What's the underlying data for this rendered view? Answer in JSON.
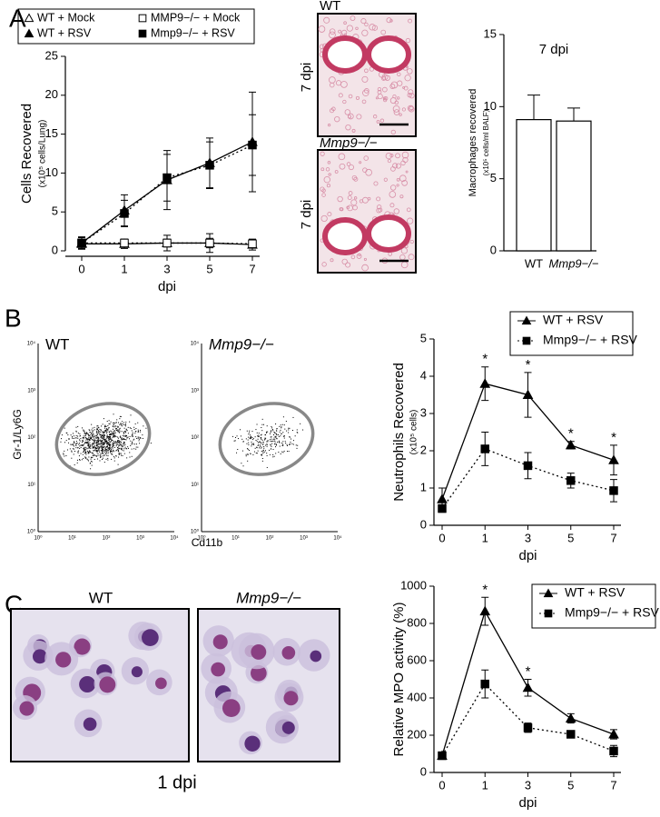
{
  "panel_letters": [
    "A",
    "B",
    "C"
  ],
  "lung_sections": [
    {
      "label": "WT",
      "time": "7 dpi"
    },
    {
      "label": "Mmp9−/−",
      "time": "7 dpi"
    }
  ],
  "flow_cytometry": {
    "plots": [
      "WT",
      "Mmp9−/−"
    ],
    "ylabel": "Gr-1/Ly6G",
    "xlabel": "Cd11b",
    "ticks": [
      "10⁰",
      "10¹",
      "10²",
      "10³",
      "10⁴"
    ]
  },
  "cytospin": {
    "plots": [
      "WT",
      "Mmp9−/−"
    ],
    "caption": "1 dpi"
  },
  "chart_data": [
    {
      "type": "line",
      "ylabel": "Cells Recovered",
      "ylabel_sub": "(x10⁵ cells/Lung)",
      "xlabel": "dpi",
      "categories": [
        "0",
        "1",
        "3",
        "5",
        "7"
      ],
      "ylim": [
        0,
        25
      ],
      "yticks": [
        0,
        5,
        10,
        15,
        20,
        25
      ],
      "series": [
        {
          "name": "WT + Mock",
          "color": "#000000",
          "marker": "triangle",
          "filled": false,
          "line_style": "solid",
          "values": [
            0.9,
            0.9,
            1.0,
            1.0,
            0.8
          ],
          "errors": [
            0.6,
            0.6,
            1.0,
            1.2,
            0.7
          ]
        },
        {
          "name": "MMP9−/− + Mock",
          "color": "#000000",
          "marker": "square",
          "filled": false,
          "line_style": "dotted",
          "values": [
            1.0,
            1.0,
            1.0,
            1.0,
            0.9
          ],
          "errors": [
            0.5,
            0.5,
            0.5,
            0.6,
            0.5
          ]
        },
        {
          "name": "WT + RSV",
          "color": "#000000",
          "marker": "triangle",
          "filled": true,
          "line_style": "solid",
          "values": [
            1.0,
            5.2,
            9.1,
            11.3,
            14.0
          ],
          "errors": [
            0.8,
            2.0,
            3.8,
            3.2,
            6.4
          ]
        },
        {
          "name": "Mmp9−/− + RSV",
          "color": "#000000",
          "marker": "square",
          "filled": true,
          "line_style": "dotted",
          "values": [
            1.0,
            4.8,
            9.4,
            11.0,
            13.6
          ],
          "errors": [
            0.7,
            1.7,
            3.0,
            3.0,
            3.9
          ]
        }
      ]
    },
    {
      "type": "bar",
      "title": "7 dpi",
      "ylabel": "Macrophages recovered",
      "ylabel_sub": "(x10⁵ cells/ml BALF)",
      "categories": [
        "WT",
        "Mmp9−/−"
      ],
      "values": [
        9.1,
        9.0
      ],
      "errors": [
        1.7,
        0.9
      ],
      "color": "#ffffff",
      "ylim": [
        0,
        15
      ],
      "yticks": [
        0,
        5,
        10,
        15
      ]
    },
    {
      "type": "line",
      "ylabel": "Neutrophils Recovered",
      "ylabel_sub": "(x10⁵ cells)",
      "xlabel": "dpi",
      "categories": [
        "0",
        "1",
        "3",
        "5",
        "7"
      ],
      "ylim": [
        0,
        5
      ],
      "yticks": [
        0,
        1,
        2,
        3,
        4,
        5
      ],
      "series": [
        {
          "name": "WT + RSV",
          "color": "#000000",
          "marker": "triangle",
          "filled": true,
          "line_style": "solid",
          "values": [
            0.7,
            3.8,
            3.5,
            2.15,
            1.75
          ],
          "errors": [
            0.3,
            0.45,
            0.6,
            0.1,
            0.4
          ]
        },
        {
          "name": "Mmp9−/− + RSV",
          "color": "#000000",
          "marker": "square",
          "filled": true,
          "line_style": "dotted",
          "values": [
            0.45,
            2.05,
            1.6,
            1.2,
            0.93
          ],
          "errors": [
            0.1,
            0.45,
            0.35,
            0.2,
            0.3
          ]
        }
      ],
      "annotations": [
        {
          "text": "*",
          "category": "1"
        },
        {
          "text": "*",
          "category": "3"
        },
        {
          "text": "*",
          "category": "5"
        },
        {
          "text": "*",
          "category": "7"
        }
      ]
    },
    {
      "type": "line",
      "ylabel": "Relative MPO activity (%)",
      "xlabel": "dpi",
      "categories": [
        "0",
        "1",
        "3",
        "5",
        "7"
      ],
      "ylim": [
        0,
        1000
      ],
      "yticks": [
        0,
        200,
        400,
        600,
        800,
        1000
      ],
      "series": [
        {
          "name": "WT + RSV",
          "color": "#000000",
          "marker": "triangle",
          "filled": true,
          "line_style": "solid",
          "values": [
            90,
            865,
            455,
            290,
            205
          ],
          "errors": [
            10,
            75,
            45,
            25,
            25
          ]
        },
        {
          "name": "Mmp9−/− + RSV",
          "color": "#000000",
          "marker": "square",
          "filled": true,
          "line_style": "dotted",
          "values": [
            90,
            475,
            240,
            205,
            115
          ],
          "errors": [
            10,
            75,
            25,
            15,
            30
          ]
        }
      ],
      "annotations": [
        {
          "text": "*",
          "category": "1"
        },
        {
          "text": "*",
          "category": "3"
        }
      ]
    }
  ]
}
